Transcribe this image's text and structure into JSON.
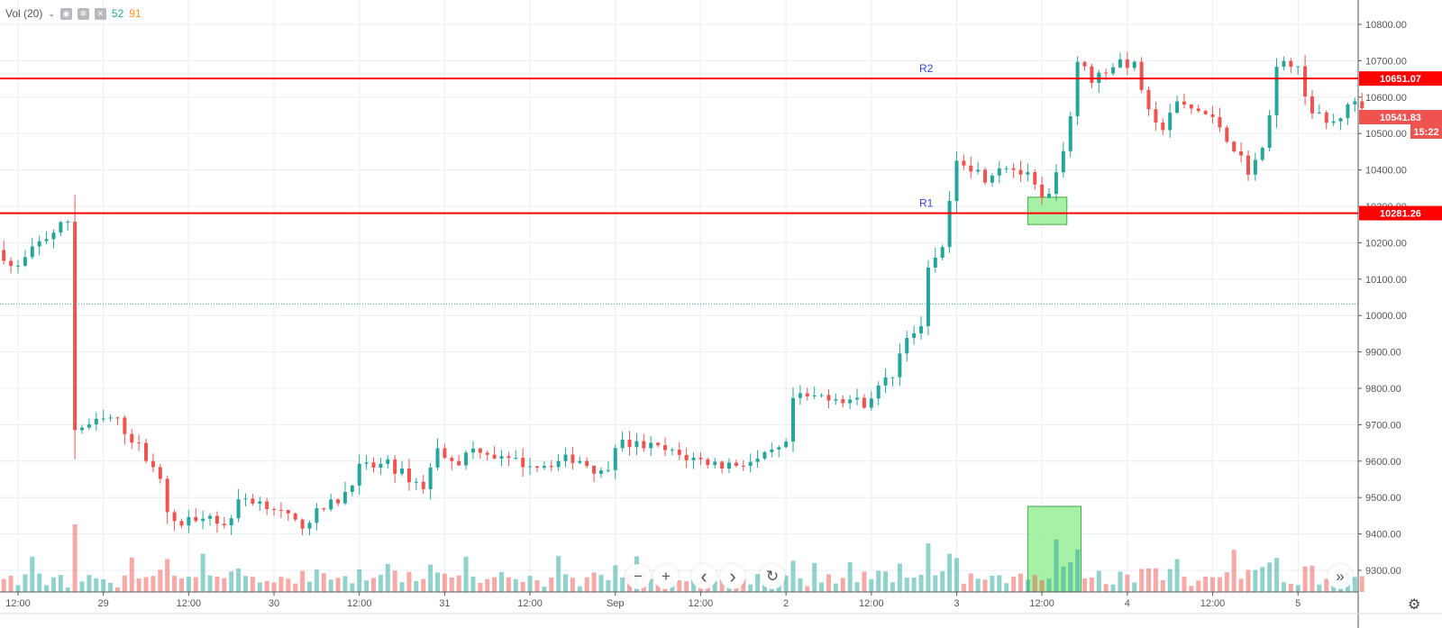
{
  "legend": {
    "label": "Vol (20)",
    "chevron": "chevron-down-icon",
    "icons": [
      "eye-icon",
      "gear-icon",
      "close-icon"
    ],
    "value_up": "52",
    "value_down": "91",
    "color_up": "#26a69a",
    "color_down": "#f7931a"
  },
  "chart_data": {
    "type": "candlestick",
    "interval": "1h",
    "y_ticks": [
      9300,
      9400,
      9500,
      9600,
      9700,
      9800,
      9900,
      10000,
      10100,
      10200,
      10300,
      10400,
      10500,
      10600,
      10700,
      10800
    ],
    "ylim": [
      9240,
      10860
    ],
    "x_ticks": [
      {
        "label": "12:00",
        "t": "28 12:00"
      },
      {
        "label": "29",
        "t": "29 00:00"
      },
      {
        "label": "12:00",
        "t": "29 12:00"
      },
      {
        "label": "30",
        "t": "30 00:00"
      },
      {
        "label": "12:00",
        "t": "30 12:00"
      },
      {
        "label": "31",
        "t": "31 00:00"
      },
      {
        "label": "12:00",
        "t": "31 12:00"
      },
      {
        "label": "Sep",
        "t": "1 00:00"
      },
      {
        "label": "12:00",
        "t": "1 12:00"
      },
      {
        "label": "2",
        "t": "2 00:00"
      },
      {
        "label": "12:00",
        "t": "2 12:00"
      },
      {
        "label": "3",
        "t": "3 00:00"
      },
      {
        "label": "12:00",
        "t": "3 12:00"
      },
      {
        "label": "4",
        "t": "4 00:00"
      },
      {
        "label": "12:00",
        "t": "4 12:00"
      },
      {
        "label": "5",
        "t": "5 00:00"
      }
    ],
    "close_path": [
      [
        "28 09:30",
        10180
      ],
      [
        "28 11:30",
        10120
      ],
      [
        "28 15:00",
        10200
      ],
      [
        "28 19:00",
        10260
      ],
      [
        "28 19:30",
        10280
      ],
      [
        "28 20:00",
        9690
      ],
      [
        "28 22:00",
        9700
      ],
      [
        "29 01:30",
        9720
      ],
      [
        "29 04:30",
        9650
      ],
      [
        "29 07:30",
        9580
      ],
      [
        "29 09:30",
        9420
      ],
      [
        "29 11:00",
        9430
      ],
      [
        "29 14:30",
        9460
      ],
      [
        "29 17:00",
        9420
      ],
      [
        "29 19:30",
        9500
      ],
      [
        "29 23:30",
        9480
      ],
      [
        "30 03:30",
        9420
      ],
      [
        "30 07:00",
        9470
      ],
      [
        "30 09:30",
        9500
      ],
      [
        "30 12:00",
        9580
      ],
      [
        "30 16:00",
        9590
      ],
      [
        "30 21:00",
        9530
      ],
      [
        "30 23:00",
        9630
      ],
      [
        "31 02:00",
        9600
      ],
      [
        "31 04:30",
        9640
      ],
      [
        "31 08:30",
        9600
      ],
      [
        "31 13:30",
        9590
      ],
      [
        "31 18:30",
        9610
      ],
      [
        "31 22:30",
        9560
      ],
      [
        "1 00:00",
        9650
      ],
      [
        "1 05:00",
        9640
      ],
      [
        "1 10:00",
        9610
      ],
      [
        "1 15:00",
        9590
      ],
      [
        "1 20:00",
        9600
      ],
      [
        "2 00:00",
        9640
      ],
      [
        "2 01:00",
        9770
      ],
      [
        "2 06:00",
        9780
      ],
      [
        "2 11:00",
        9760
      ],
      [
        "2 15:00",
        9840
      ],
      [
        "2 17:00",
        9950
      ],
      [
        "2 19:30",
        9960
      ],
      [
        "2 20:00",
        10120
      ],
      [
        "2 22:00",
        10200
      ],
      [
        "2 23:00",
        10300
      ],
      [
        "3 00:00",
        10440
      ],
      [
        "3 04:00",
        10380
      ],
      [
        "3 06:30",
        10420
      ],
      [
        "3 10:00",
        10380
      ],
      [
        "3 12:30",
        10300
      ],
      [
        "3 14:00",
        10380
      ],
      [
        "3 16:00",
        10550
      ],
      [
        "3 17:00",
        10700
      ],
      [
        "3 19:00",
        10650
      ],
      [
        "3 23:00",
        10700
      ],
      [
        "4 01:30",
        10680
      ],
      [
        "4 02:30",
        10570
      ],
      [
        "4 04:30",
        10500
      ],
      [
        "4 06:30",
        10580
      ],
      [
        "4 10:30",
        10560
      ],
      [
        "4 13:00",
        10520
      ],
      [
        "4 17:00",
        10400
      ],
      [
        "4 19:00",
        10450
      ],
      [
        "4 21:00",
        10680
      ],
      [
        "4 23:30",
        10700
      ],
      [
        "5 02:00",
        10560
      ],
      [
        "5 04:30",
        10520
      ],
      [
        "5 08:30",
        10600
      ],
      [
        "5 09:30",
        10560
      ]
    ],
    "hlines": [
      {
        "name": "R1",
        "price": 10281.26,
        "label": "10281.26",
        "color": "#ff0000"
      },
      {
        "name": "R2",
        "price": 10651.07,
        "label": "10651.07",
        "color": "#ff0000"
      }
    ],
    "dotted_line": {
      "price": 10032,
      "color": "#26a69a"
    },
    "last_price": {
      "label": "10541.83",
      "countdown": "15:22",
      "color": "#ef5350"
    },
    "highlight_boxes": [
      {
        "pane": "price",
        "t_start": "3 10:00",
        "t_end": "3 15:30",
        "low": 10250,
        "high": 10325,
        "color": "#90ee90"
      },
      {
        "pane": "volume",
        "t_start": "3 10:00",
        "t_end": "3 17:30",
        "color": "#90ee90"
      }
    ],
    "colors": {
      "up": "#26a69a",
      "down": "#ef5350",
      "grid": "#e8eef3"
    }
  },
  "nav": {
    "zoom_out": "−",
    "zoom_in": "+",
    "scroll_left": "‹",
    "scroll_right": "›",
    "reset": "↻",
    "scroll_end": "»",
    "settings": "⚙"
  }
}
